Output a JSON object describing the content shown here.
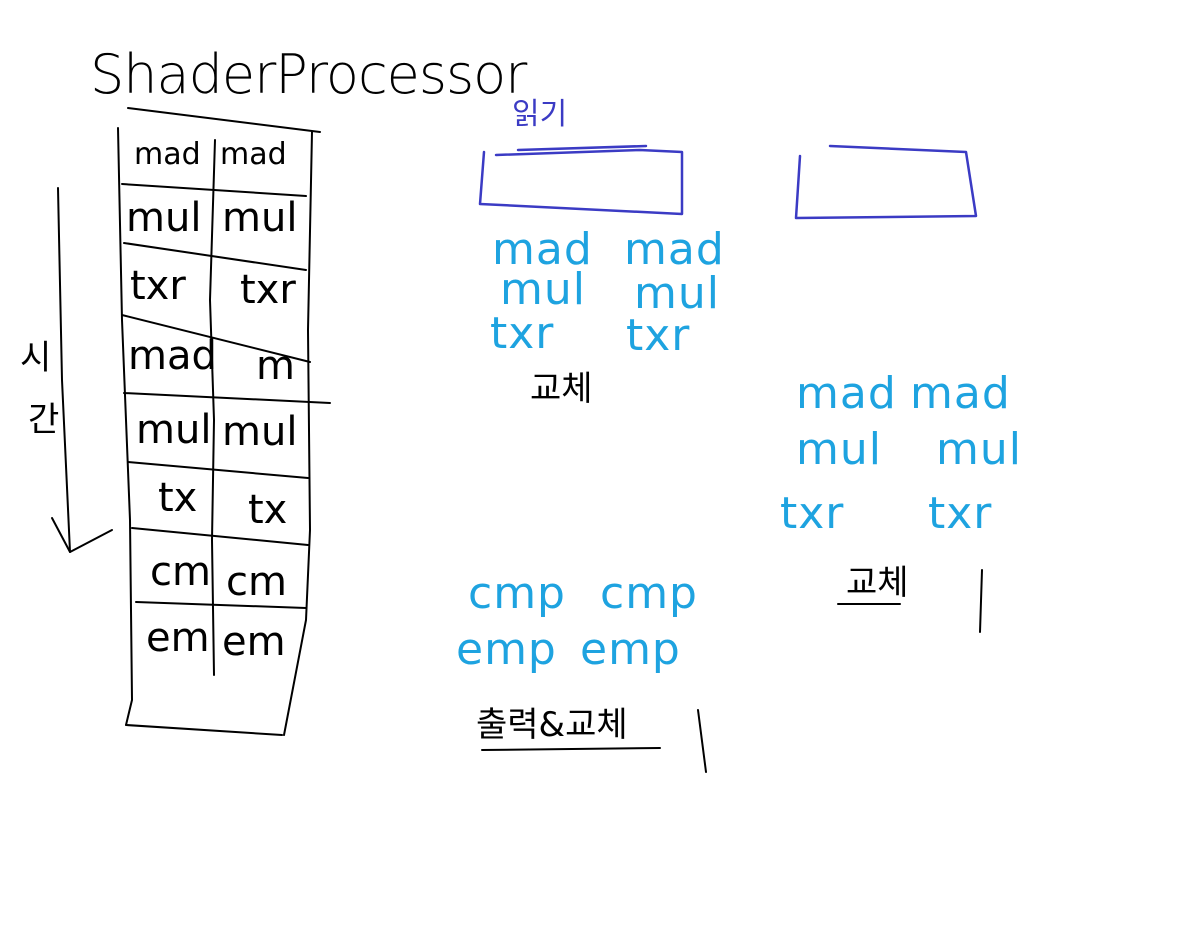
{
  "title": "ShaderProcessor",
  "time_label": [
    "시",
    "간"
  ],
  "processor_rows": [
    {
      "left": "mad",
      "right": "mad"
    },
    {
      "left": "mul",
      "right": "mul"
    },
    {
      "left": "txr",
      "right": "txr"
    },
    {
      "left": "mad",
      "right": "m"
    },
    {
      "left": "mul",
      "right": "mul"
    },
    {
      "left": "tx",
      "right": "tx"
    },
    {
      "left": "cm",
      "right": "cm"
    },
    {
      "left": "em",
      "right": "em"
    }
  ],
  "group_a": {
    "label": "읽기",
    "ops": [
      {
        "left": "mad",
        "right": "mad"
      },
      {
        "left": "mul",
        "right": "mul"
      },
      {
        "left": "txr",
        "right": "txr"
      }
    ],
    "note": "교체"
  },
  "group_b": {
    "ops": [
      {
        "left": "mad",
        "right": "mad"
      },
      {
        "left": "mul",
        "right": "mul"
      },
      {
        "left": "txr",
        "right": "txr"
      }
    ],
    "note": "교체"
  },
  "group_c": {
    "ops": [
      {
        "left": "cmp",
        "right": "cmp"
      },
      {
        "left": "emp",
        "right": "emp"
      }
    ],
    "note": "출력&교체"
  },
  "colors": {
    "black": "#000000",
    "blue": "#3b3bc4",
    "cyan": "#1ea3e0"
  }
}
